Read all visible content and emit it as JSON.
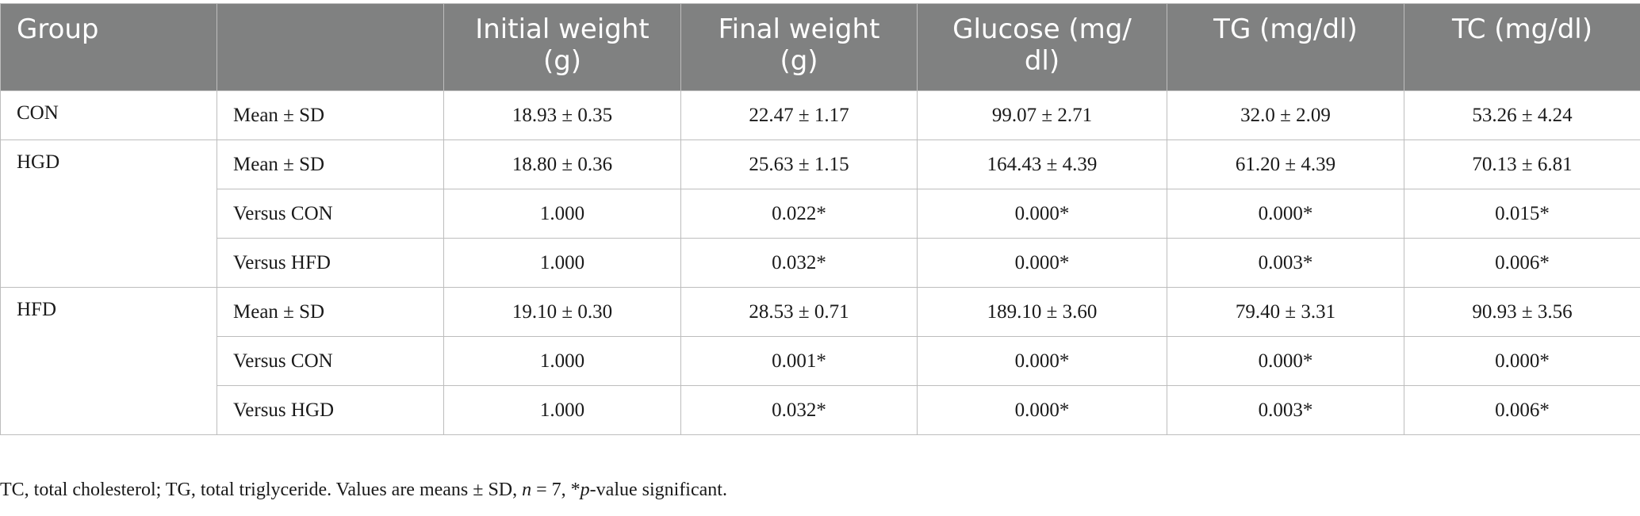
{
  "table": {
    "headers": [
      "Group",
      "",
      "Initial weight (g)",
      "Final weight (g)",
      "Glucose (mg/dl)",
      "TG (mg/dl)",
      "TC (mg/dl)"
    ],
    "header_display": {
      "group": "Group",
      "blank": "",
      "initial_weight": [
        "Initial weight",
        "(g)"
      ],
      "final_weight": [
        "Final weight",
        "(g)"
      ],
      "glucose": [
        "Glucose (mg/",
        "dl)"
      ],
      "tg": "TG (mg/dl)",
      "tc": "TC (mg/dl)"
    },
    "groups": [
      {
        "name": "CON",
        "rows": [
          {
            "stat": "Mean ± SD",
            "initial": "18.93 ± 0.35",
            "final": "22.47 ± 1.17",
            "glucose": "99.07 ± 2.71",
            "tg": "32.0 ± 2.09",
            "tc": "53.26 ± 4.24"
          }
        ]
      },
      {
        "name": "HGD",
        "rows": [
          {
            "stat": "Mean ± SD",
            "initial": "18.80 ± 0.36",
            "final": "25.63 ± 1.15",
            "glucose": "164.43 ± 4.39",
            "tg": "61.20 ± 4.39",
            "tc": "70.13 ± 6.81"
          },
          {
            "stat": "Versus CON",
            "initial": "1.000",
            "final": "0.022*",
            "glucose": "0.000*",
            "tg": "0.000*",
            "tc": "0.015*"
          },
          {
            "stat": "Versus HFD",
            "initial": "1.000",
            "final": "0.032*",
            "glucose": "0.000*",
            "tg": "0.003*",
            "tc": "0.006*"
          }
        ]
      },
      {
        "name": "HFD",
        "rows": [
          {
            "stat": "Mean ± SD",
            "initial": "19.10 ± 0.30",
            "final": "28.53 ± 0.71",
            "glucose": "189.10 ± 3.60",
            "tg": "79.40 ± 3.31",
            "tc": "90.93 ± 3.56"
          },
          {
            "stat": "Versus CON",
            "initial": "1.000",
            "final": "0.001*",
            "glucose": "0.000*",
            "tg": "0.000*",
            "tc": "0.000*"
          },
          {
            "stat": "Versus HGD",
            "initial": "1.000",
            "final": "0.032*",
            "glucose": "0.000*",
            "tg": "0.003*",
            "tc": "0.006*"
          }
        ]
      }
    ]
  },
  "footnote": {
    "part1": "TC, total cholesterol; TG, total triglyceride. Values are means ± SD, ",
    "n_symbol": "n",
    "part2": " = 7, *",
    "p_symbol": "p",
    "part3": "-value significant."
  },
  "colors": {
    "header_bg": "#808181",
    "header_text": "#ffffff",
    "border": "#bdbdbd"
  }
}
